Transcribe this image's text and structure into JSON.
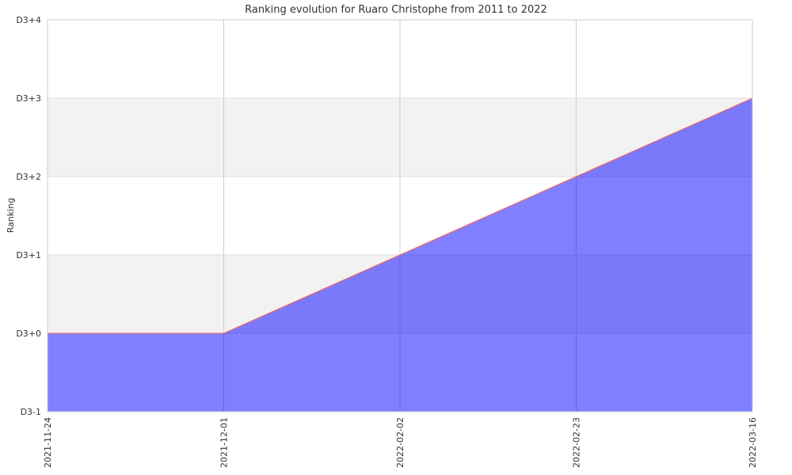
{
  "chart_data": {
    "type": "area",
    "title": "Ranking evolution for Ruaro Christophe from 2011 to 2022",
    "xlabel": "",
    "ylabel": "Ranking",
    "categories": [
      "2021-11-24",
      "2021-12-01",
      "2022-02-02",
      "2022-02-23",
      "2022-03-16"
    ],
    "y_tick_labels": [
      "D3-1",
      "D3+0",
      "D3+1",
      "D3+2",
      "D3+3",
      "D3+4"
    ],
    "ylim": [
      -1,
      4
    ],
    "series": [
      {
        "values": [
          0,
          0,
          1,
          2,
          3
        ]
      }
    ],
    "grid": true,
    "colors": {
      "fill": "#0000ff",
      "line": "#ff6666",
      "band": "#f2f2f2",
      "grid": "#cccccc"
    }
  }
}
